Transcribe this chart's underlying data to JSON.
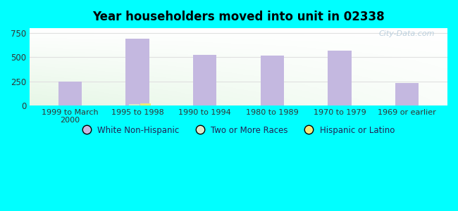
{
  "title": "Year householders moved into unit in 02338",
  "categories": [
    "1999 to March\n2000",
    "1995 to 1998",
    "1990 to 1994",
    "1980 to 1989",
    "1970 to 1979",
    "1969 or earlier"
  ],
  "series": [
    {
      "label": "White Non-Hispanic",
      "color": "#c4b8e0",
      "values": [
        245,
        690,
        525,
        515,
        570,
        235
      ]
    },
    {
      "label": "Two or More Races",
      "color": "#d8e8c8",
      "values": [
        0,
        18,
        0,
        0,
        0,
        0
      ]
    },
    {
      "label": "Hispanic or Latino",
      "color": "#f0e87a",
      "values": [
        0,
        22,
        0,
        0,
        0,
        0
      ]
    }
  ],
  "ylim": [
    0,
    800
  ],
  "yticks": [
    0,
    250,
    500,
    750
  ],
  "background_color": "#00ffff",
  "bar_width": 0.35,
  "small_bar_width": 0.15,
  "watermark": "City-Data.com",
  "grid_color": "#e0e0e0",
  "legend_marker_color_white": "#c4b8e0",
  "legend_marker_color_two": "#d8e8c8",
  "legend_marker_color_hispanic": "#f0e87a"
}
